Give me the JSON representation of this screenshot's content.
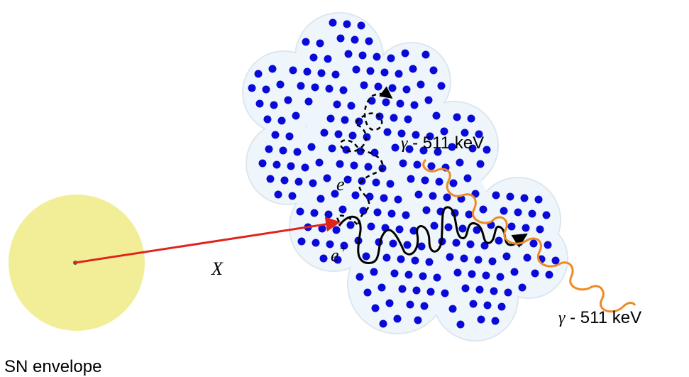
{
  "labels": {
    "sn_envelope": "SN envelope",
    "x_particle": "X",
    "electron": "e",
    "electron_sup": "−",
    "positron": "e",
    "positron_sup": "+",
    "gamma_symbol": "γ",
    "gamma_top": " - 511 keV",
    "gamma_bottom": " - 511 keV"
  },
  "colors": {
    "sn_envelope_fill": "#f2ee98",
    "cloud_fill": "#eef6fc",
    "cloud_stroke": "#dde6ee",
    "dots": "#0a0ad8",
    "x_arrow": "#e0231b",
    "gamma_wave": "#ee8a22",
    "tracks": "#000000"
  }
}
